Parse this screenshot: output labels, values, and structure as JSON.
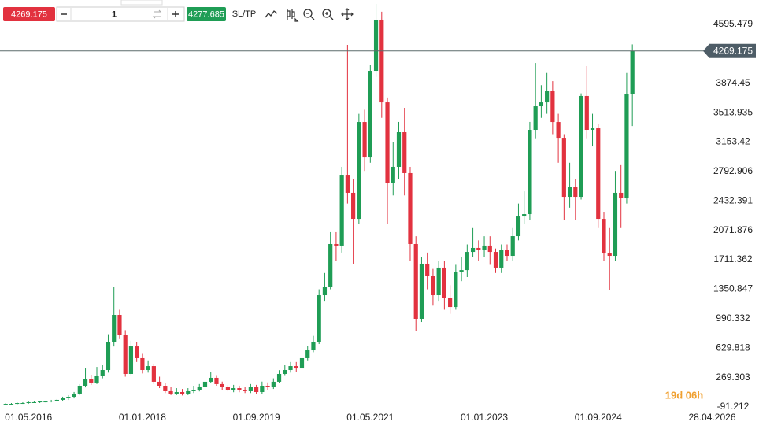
{
  "toolbar": {
    "sell": "4269.175",
    "quantity": "1",
    "buy": "4277.685",
    "sltp": "SL/TP"
  },
  "countdown": "19d 06h",
  "chart_data": {
    "type": "candlestick",
    "up_color": "#1f9d55",
    "down_color": "#e2323f",
    "current_price": 4269.175,
    "xlim": [
      -1,
      122
    ],
    "xticks": [
      {
        "value": 4,
        "label": "01.05.2016"
      },
      {
        "value": 24,
        "label": "01.01.2018"
      },
      {
        "value": 44,
        "label": "01.09.2019"
      },
      {
        "value": 64,
        "label": "01.05.2021"
      },
      {
        "value": 84,
        "label": "01.01.2023"
      },
      {
        "value": 104,
        "label": "01.09.2024"
      },
      {
        "value": 124,
        "label": "28.04.2026"
      }
    ],
    "ylim": [
      -120,
      4894
    ],
    "yticks": [
      4595.479,
      3874.45,
      3513.935,
      3153.42,
      2792.906,
      2432.391,
      2071.876,
      1711.362,
      1350.847,
      990.332,
      629.818,
      269.303,
      -91.212
    ],
    "grid": false,
    "open": [
      -53,
      -53,
      -53,
      -43,
      -43,
      -33,
      -33,
      -24,
      -24,
      -14,
      -4,
      15,
      34,
      73,
      169,
      247,
      208,
      285,
      362,
      700,
      1037,
      796,
      314,
      651,
      507,
      362,
      410,
      218,
      169,
      102,
      73,
      92,
      73,
      102,
      121,
      150,
      218,
      266,
      189,
      150,
      121,
      140,
      121,
      102,
      150,
      92,
      169,
      150,
      218,
      314,
      362,
      410,
      381,
      507,
      603,
      700,
      1278,
      1375,
      1905,
      1886,
      2753,
      2532,
      2213,
      3399,
      2965,
      4026,
      4653,
      3640,
      2657,
      2850,
      3274,
      2773,
      1905,
      989,
      1664,
      1519,
      1278,
      1616,
      1249,
      1133,
      1567,
      1586,
      1808,
      1857,
      1828,
      1886,
      1808,
      1616,
      1828,
      1760,
      2001,
      2242,
      2271,
      3303,
      3592,
      3640,
      3785,
      3399,
      3206,
      2483,
      2599,
      2483,
      3718,
      3303,
      3322,
      2213,
      1789,
      1760,
      2532,
      2464,
      3737
    ],
    "high": [
      -43,
      -43,
      -33,
      -33,
      -23,
      -23,
      -14,
      -14,
      -4,
      6,
      35,
      54,
      93,
      189,
      381,
      300,
      400,
      420,
      800,
      1375,
      1100,
      850,
      720,
      700,
      560,
      480,
      440,
      280,
      200,
      150,
      140,
      130,
      140,
      160,
      190,
      260,
      340,
      290,
      220,
      180,
      180,
      170,
      150,
      190,
      180,
      220,
      210,
      260,
      360,
      420,
      460,
      460,
      560,
      660,
      780,
      1350,
      1550,
      2050,
      2050,
      2850,
      4344,
      2700,
      3500,
      3550,
      4100,
      4847,
      4750,
      3700,
      3150,
      3400,
      3573,
      2850,
      2000,
      1750,
      1800,
      1600,
      1700,
      1700,
      1400,
      1650,
      1750,
      1900,
      2100,
      1950,
      2000,
      2000,
      1850,
      1900,
      1900,
      2100,
      2400,
      2550,
      3400,
      4122,
      3850,
      4000,
      3900,
      3500,
      3250,
      2900,
      2700,
      3750,
      4084,
      3500,
      3380,
      2300,
      2100,
      2800,
      2880,
      4000,
      4350
    ],
    "low": [
      -63,
      -63,
      -63,
      -53,
      -53,
      -43,
      -43,
      -34,
      -34,
      -24,
      -14,
      -5,
      14,
      53,
      149,
      180,
      190,
      260,
      330,
      650,
      740,
      280,
      290,
      460,
      320,
      330,
      190,
      140,
      80,
      55,
      55,
      50,
      55,
      80,
      100,
      130,
      200,
      160,
      120,
      100,
      90,
      90,
      80,
      80,
      70,
      70,
      120,
      130,
      200,
      290,
      330,
      340,
      360,
      480,
      580,
      680,
      1200,
      1350,
      1700,
      1800,
      2400,
      1664,
      2150,
      2800,
      2900,
      3950,
      3450,
      2146,
      2500,
      2700,
      2500,
      1700,
      844,
      950,
      1350,
      1150,
      1200,
      1100,
      1050,
      1100,
      1450,
      1500,
      1750,
      1700,
      1750,
      1650,
      1550,
      1550,
      1700,
      1700,
      1950,
      2150,
      2200,
      3200,
      3450,
      3500,
      3250,
      2900,
      2200,
      2350,
      2200,
      2450,
      3200,
      3100,
      2100,
      1700,
      1345,
      1700,
      2100,
      2400,
      3350
    ],
    "close": [
      -53,
      -53,
      -43,
      -43,
      -33,
      -33,
      -24,
      -24,
      -14,
      -4,
      15,
      34,
      73,
      169,
      247,
      208,
      285,
      362,
      700,
      1037,
      796,
      314,
      651,
      507,
      362,
      410,
      218,
      169,
      102,
      73,
      92,
      73,
      102,
      121,
      150,
      218,
      266,
      189,
      150,
      121,
      140,
      121,
      102,
      150,
      92,
      169,
      150,
      218,
      314,
      362,
      410,
      381,
      507,
      603,
      700,
      1278,
      1375,
      1905,
      1886,
      2753,
      2532,
      2213,
      3399,
      2965,
      4026,
      4653,
      3640,
      2657,
      2850,
      3274,
      2773,
      1905,
      989,
      1664,
      1519,
      1278,
      1616,
      1249,
      1133,
      1567,
      1586,
      1808,
      1857,
      1828,
      1886,
      1808,
      1616,
      1828,
      1760,
      2001,
      2242,
      2271,
      3303,
      3592,
      3640,
      3785,
      3399,
      3206,
      2483,
      2599,
      2483,
      3718,
      3303,
      3322,
      2213,
      1789,
      1760,
      2532,
      2464,
      3737,
      4269.175
    ]
  }
}
